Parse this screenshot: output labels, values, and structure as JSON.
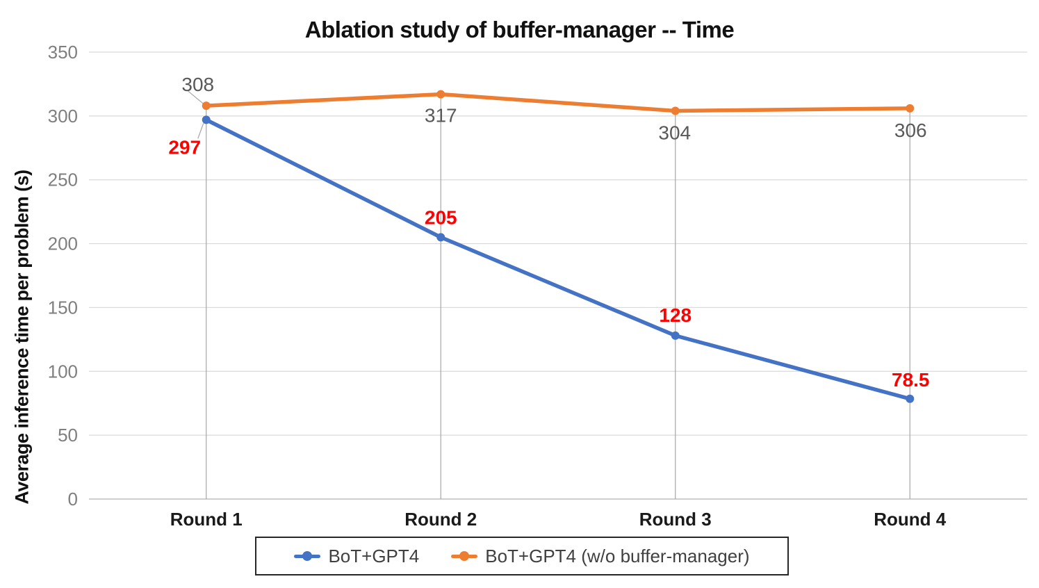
{
  "chart_data": {
    "type": "line",
    "title": "Ablation study of buffer-manager -- Time",
    "ylabel": "Average inference time per problem (s)",
    "xlabel": "",
    "categories": [
      "Round 1",
      "Round 2",
      "Round 3",
      "Round 4"
    ],
    "series": [
      {
        "name": "BoT+GPT4",
        "color": "#4472C4",
        "data_label_color": "#FF0000",
        "values": [
          297,
          205,
          128,
          78.5
        ]
      },
      {
        "name": "BoT+GPT4 (w/o buffer-manager)",
        "color": "#ED7D31",
        "data_label_color": "#595959",
        "values": [
          308,
          317,
          304,
          306
        ]
      }
    ],
    "ylim": [
      0,
      350
    ],
    "yticks": [
      0,
      50,
      100,
      150,
      200,
      250,
      300,
      350
    ],
    "grid": "horizontal gridlines on, vertical drop lines at each category",
    "legend_position": "bottom"
  }
}
